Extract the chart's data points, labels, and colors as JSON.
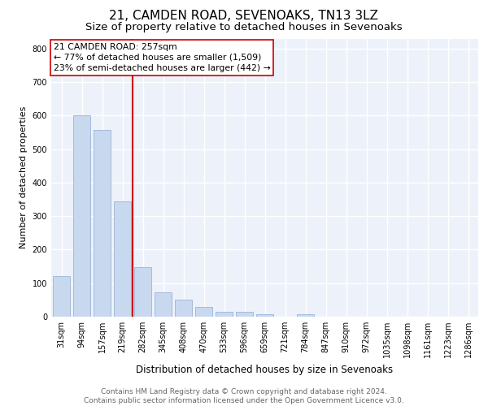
{
  "title1": "21, CAMDEN ROAD, SEVENOAKS, TN13 3LZ",
  "title2": "Size of property relative to detached houses in Sevenoaks",
  "xlabel": "Distribution of detached houses by size in Sevenoaks",
  "ylabel": "Number of detached properties",
  "categories": [
    "31sqm",
    "94sqm",
    "157sqm",
    "219sqm",
    "282sqm",
    "345sqm",
    "408sqm",
    "470sqm",
    "533sqm",
    "596sqm",
    "659sqm",
    "721sqm",
    "784sqm",
    "847sqm",
    "910sqm",
    "972sqm",
    "1035sqm",
    "1098sqm",
    "1161sqm",
    "1223sqm",
    "1286sqm"
  ],
  "values": [
    122,
    601,
    558,
    345,
    149,
    73,
    51,
    30,
    15,
    15,
    8,
    0,
    7,
    0,
    0,
    0,
    0,
    0,
    0,
    0,
    0
  ],
  "bar_color": "#c8d8ee",
  "bar_edgecolor": "#9ab4d8",
  "vline_color": "#cc0000",
  "annotation_text": "21 CAMDEN ROAD: 257sqm\n← 77% of detached houses are smaller (1,509)\n23% of semi-detached houses are larger (442) →",
  "annotation_box_color": "#ffffff",
  "annotation_box_edgecolor": "#cc0000",
  "ylim": [
    0,
    830
  ],
  "yticks": [
    0,
    100,
    200,
    300,
    400,
    500,
    600,
    700,
    800
  ],
  "background_color": "#edf2fa",
  "grid_color": "#ffffff",
  "footer_text": "Contains HM Land Registry data © Crown copyright and database right 2024.\nContains public sector information licensed under the Open Government Licence v3.0.",
  "title1_fontsize": 11,
  "title2_fontsize": 9.5,
  "ylabel_fontsize": 8,
  "xlabel_fontsize": 8.5,
  "tick_fontsize": 7,
  "annotation_fontsize": 7.8,
  "footer_fontsize": 6.5
}
